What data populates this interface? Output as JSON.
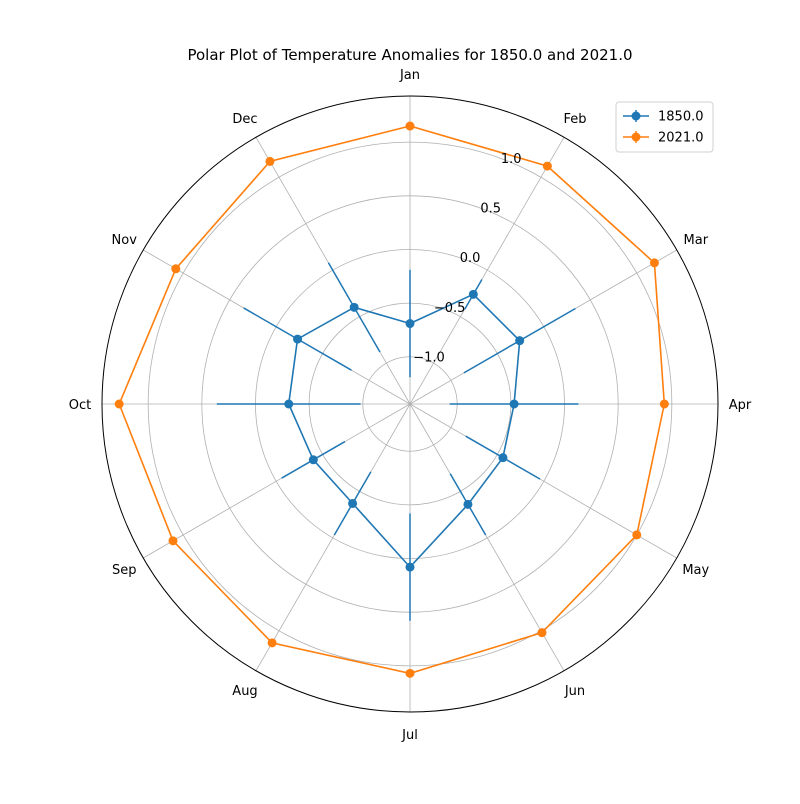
{
  "chart_data": {
    "type": "polar-line",
    "title": "Polar Plot of Temperature Anomalies for 1850.0 and 2021.0",
    "categories": [
      "Jan",
      "Feb",
      "Mar",
      "Apr",
      "May",
      "Jun",
      "Jul",
      "Aug",
      "Sep",
      "Oct",
      "Nov",
      "Dec"
    ],
    "radial_ticks": [
      {
        "value": -1.0,
        "label": "−1.0"
      },
      {
        "value": -0.5,
        "label": "−0.5"
      },
      {
        "value": 0.0,
        "label": "0.0"
      },
      {
        "value": 0.5,
        "label": "0.5"
      },
      {
        "value": 1.0,
        "label": "1.0"
      }
    ],
    "rlim": [
      -1.44,
      1.43
    ],
    "direction": "clockwise",
    "zero_location": "top",
    "grid": true,
    "legend_position": "upper right",
    "series": [
      {
        "name": "1850.0",
        "color": "#1f77b4",
        "values": [
          -0.69,
          -0.26,
          -0.26,
          -0.47,
          -0.44,
          -0.36,
          0.08,
          -0.37,
          -0.4,
          -0.31,
          -0.23,
          -0.4
        ],
        "errors": [
          0.5,
          0.16,
          0.6,
          0.6,
          0.4,
          0.33,
          0.5,
          0.34,
          0.34,
          0.67,
          0.58,
          0.48
        ]
      },
      {
        "name": "2021.0",
        "color": "#ff7f0e",
        "values": [
          1.15,
          1.12,
          1.19,
          0.93,
          1.0,
          1.02,
          1.07,
          1.13,
          1.11,
          1.27,
          1.08,
          1.17
        ],
        "errors": [
          0,
          0,
          0,
          0,
          0,
          0,
          0,
          0,
          0,
          0,
          0,
          0
        ]
      }
    ]
  }
}
